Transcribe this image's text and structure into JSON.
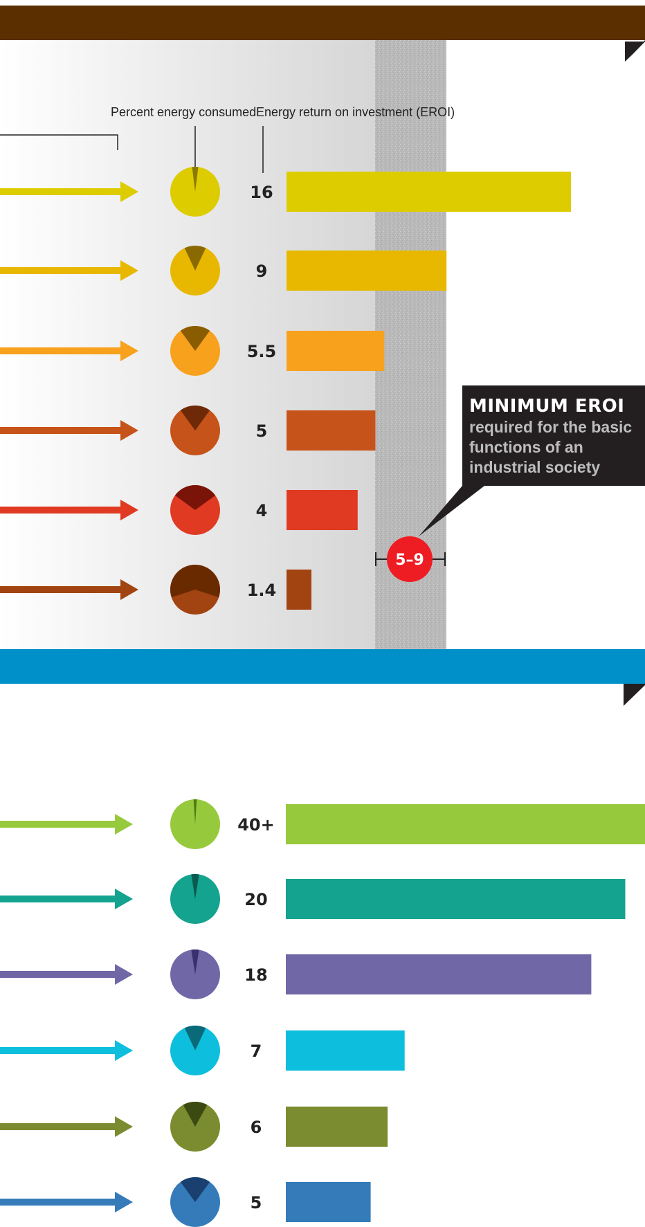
{
  "header_labels": {
    "percent": "Percent energy consumed",
    "eroi": "Energy return on investment (EROI)"
  },
  "colors": {
    "top_band": "#5b2f00",
    "bottom_band": "#0090c9",
    "callout_bg": "#231f20",
    "range_marker": "#ee1d23"
  },
  "callout": {
    "title": "MINIMUM EROI",
    "lines": [
      "required for the basic",
      "functions of an",
      "industrial society"
    ],
    "range_label": "5–9",
    "range": [
      5,
      9
    ]
  },
  "chart_data": [
    {
      "type": "bar",
      "categories": [
        "",
        "",
        "",
        "",
        "",
        ""
      ],
      "series": [
        {
          "values": [
            16,
            9,
            5.5,
            5,
            4,
            1.4
          ],
          "labels": [
            "16",
            "9",
            "5.5",
            "5",
            "4",
            "1.4"
          ]
        }
      ],
      "xlim": [
        0,
        16
      ],
      "colors": [
        "#ddcc00",
        "#e8b800",
        "#f7a11c",
        "#c65319",
        "#e03a22",
        "#a24411"
      ],
      "dark_colors": [
        "#8a7a00",
        "#8a6a00",
        "#8a5c00",
        "#6e2a08",
        "#7a1408",
        "#6a2a00"
      ],
      "pie_percent": [
        4,
        14,
        20,
        20,
        30,
        60
      ]
    },
    {
      "type": "bar",
      "categories": [
        "",
        "",
        "",
        "",
        "",
        ""
      ],
      "series": [
        {
          "values": [
            40,
            20,
            18,
            7,
            6,
            5
          ],
          "labels": [
            "40+",
            "20",
            "18",
            "7",
            "6",
            "5"
          ]
        }
      ],
      "colors": [
        "#97c93d",
        "#14a38f",
        "#7068a6",
        "#0ebfdd",
        "#7b8b30",
        "#357bb9"
      ],
      "dark_colors": [
        "#4a7a10",
        "#0a5a50",
        "#3a3070",
        "#0a6a7a",
        "#3a4a10",
        "#1a4070"
      ],
      "pie_percent": [
        2,
        5,
        5,
        14,
        16,
        20
      ]
    }
  ]
}
